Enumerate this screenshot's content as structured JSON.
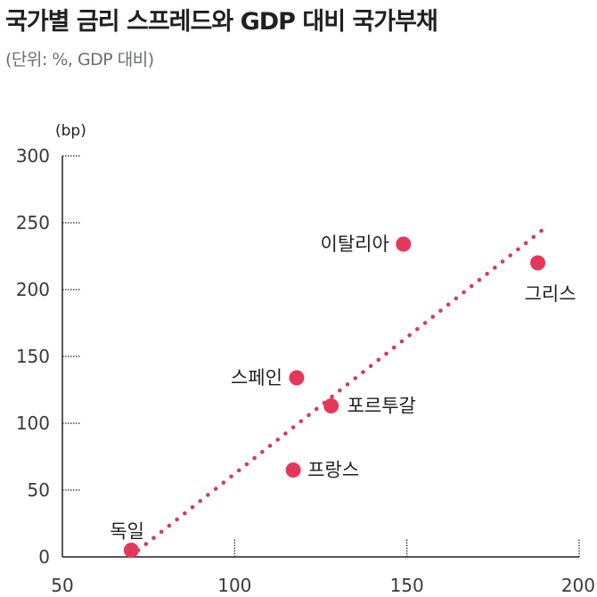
{
  "chart_data": {
    "type": "scatter",
    "title": "국가별 금리 스프레드와 GDP 대비 국가부채",
    "subtitle": "(단위: %, GDP 대비)",
    "ylabel": "(bp)",
    "xlabel": "",
    "xlim": [
      50,
      200
    ],
    "ylim": [
      0,
      300
    ],
    "xticks": [
      50,
      100,
      150,
      200
    ],
    "yticks": [
      0,
      50,
      100,
      150,
      200,
      250,
      300
    ],
    "grid": false,
    "points": [
      {
        "label": "독일",
        "x": 70,
        "y": 5
      },
      {
        "label": "프랑스",
        "x": 117,
        "y": 65
      },
      {
        "label": "포르투갈",
        "x": 128,
        "y": 113
      },
      {
        "label": "스페인",
        "x": 118,
        "y": 134
      },
      {
        "label": "이탈리아",
        "x": 149,
        "y": 234
      },
      {
        "label": "그리스",
        "x": 188,
        "y": 220
      }
    ],
    "trendline": {
      "x": [
        72,
        191
      ],
      "y": [
        5,
        248
      ]
    },
    "colors": {
      "point": "#e4385b",
      "trend": "#d9385b",
      "axis": "#231f20"
    }
  }
}
